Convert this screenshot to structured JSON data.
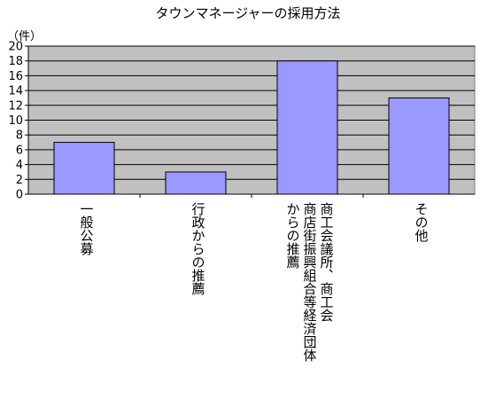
{
  "chart_data": {
    "type": "bar",
    "title": "タウンマネージャーの採用方法",
    "ylabel": "（件）",
    "xlabel": "",
    "ylim": [
      0,
      20
    ],
    "ytick_step": 2,
    "yticks": [
      "0",
      "2",
      "4",
      "6",
      "8",
      "10",
      "12",
      "14",
      "16",
      "18",
      "20"
    ],
    "categories": [
      "一般公募",
      "行政からの推薦",
      "商工会議所、商工会\n商店街振興組合等経済団体\nからの推薦",
      "その他"
    ],
    "values": [
      7,
      3,
      18,
      13
    ],
    "grid": true,
    "legend": "none",
    "colors": {
      "bar": "#9999ff",
      "plot_bg": "#c0c0c0",
      "grid": "#000000",
      "bar_stroke": "#000000"
    }
  }
}
